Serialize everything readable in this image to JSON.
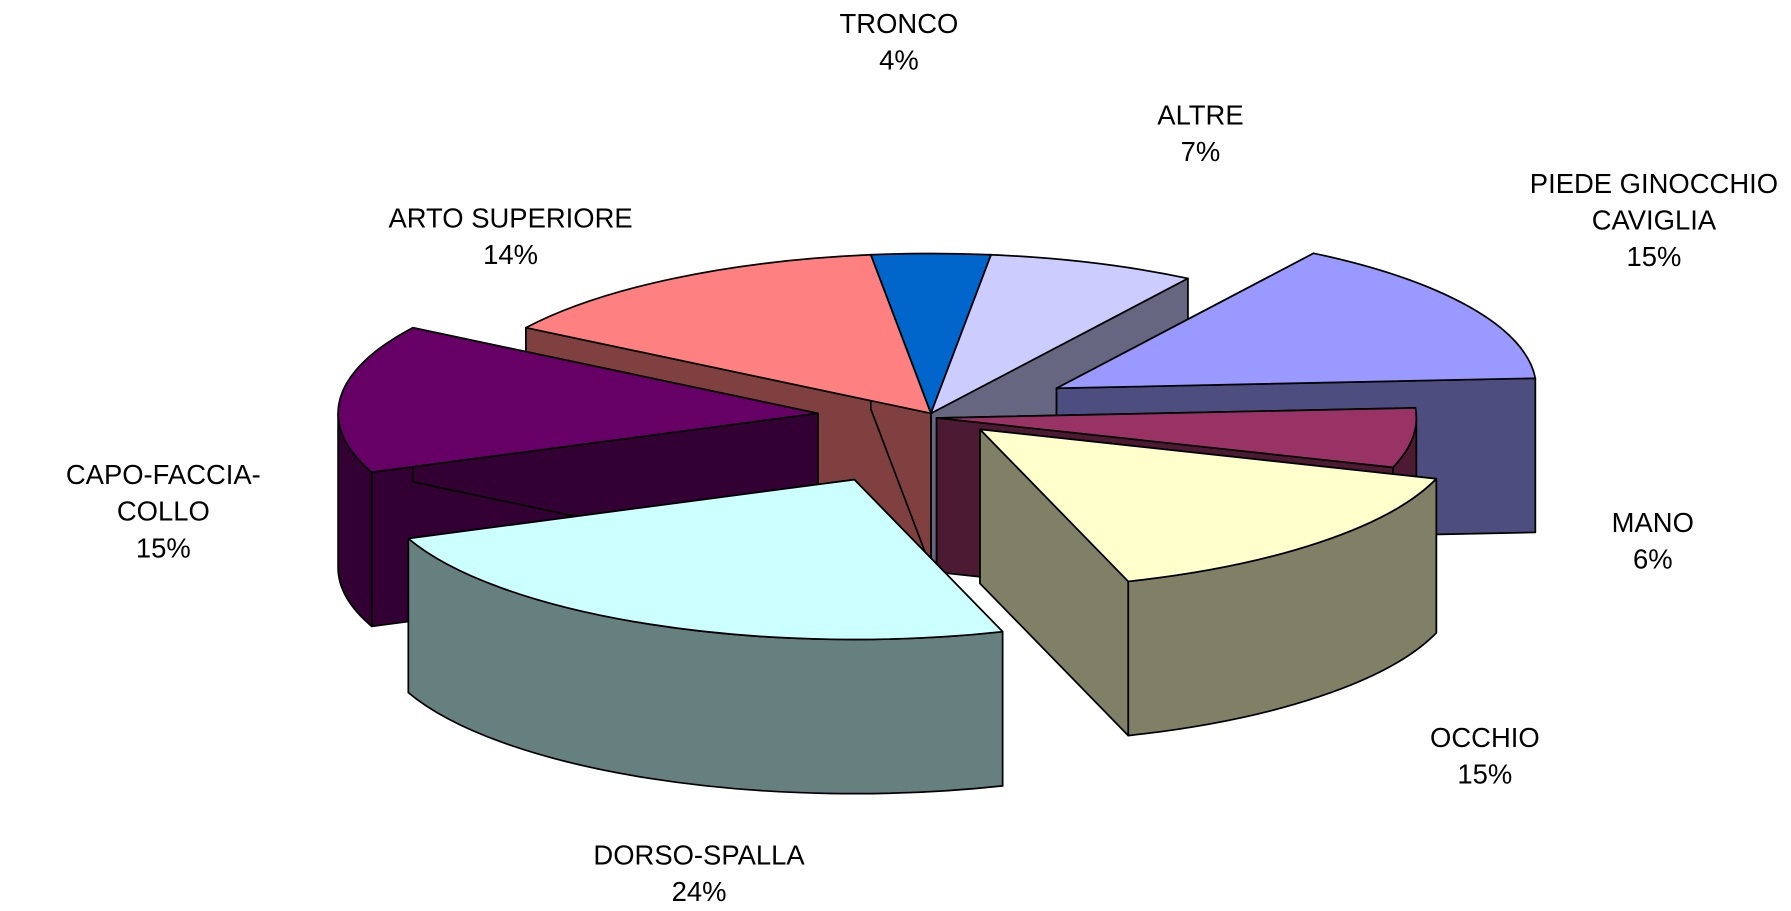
{
  "chart_data": {
    "type": "pie",
    "categories": [
      "TRONCO",
      "ALTRE",
      "PIEDE GINOCCHIO CAVIGLIA",
      "MANO",
      "OCCHIO",
      "DORSO-SPALLA",
      "CAPO-FACCIA-COLLO",
      "ARTO SUPERIORE"
    ],
    "values": [
      4,
      7,
      15,
      6,
      15,
      24,
      15,
      14
    ],
    "value_labels": [
      "4%",
      "7%",
      "15%",
      "6%",
      "15%",
      "24%",
      "15%",
      "14%"
    ],
    "colors": [
      "#0066cc",
      "#ccccff",
      "#9999ff",
      "#993366",
      "#ffffcc",
      "#ccffff",
      "#660066",
      "#ff8080"
    ]
  }
}
